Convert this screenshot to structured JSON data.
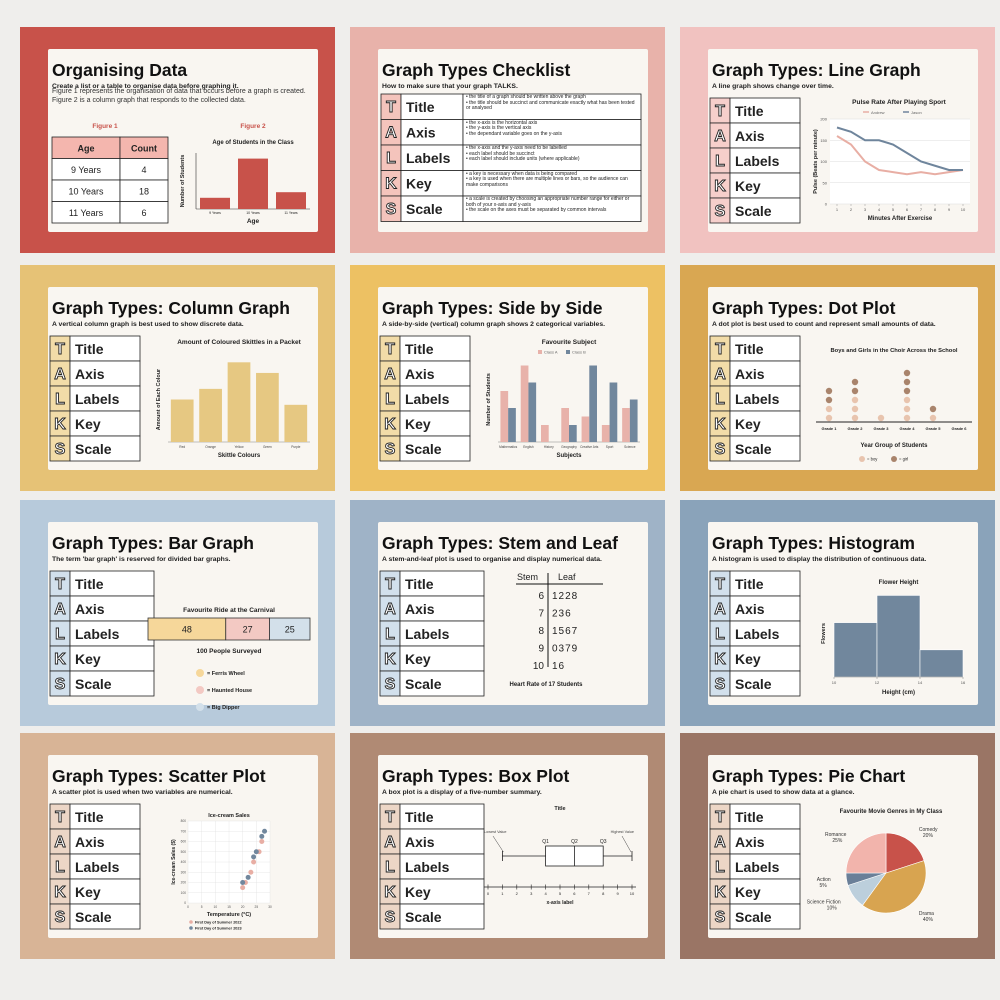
{
  "talks": [
    {
      "letter": "T",
      "word": "Title"
    },
    {
      "letter": "A",
      "word": "Axis"
    },
    {
      "letter": "L",
      "word": "Labels"
    },
    {
      "letter": "K",
      "word": "Key"
    },
    {
      "letter": "S",
      "word": "Scale"
    }
  ],
  "slides": [
    {
      "title": "Organising Data",
      "subtitle": "Create a list or a table to organise data before graphing it.",
      "text": "Figure 1 represents the organisation of data that occurs before a graph is created. Figure 2 is a column graph that responds to the collected data.",
      "background": "#c8524a",
      "tint": "#f4b6ae",
      "table": {
        "caption": "Figure 1",
        "header": [
          "Age",
          "Count"
        ],
        "rows": [
          [
            "9 Years",
            4
          ],
          [
            "10 Years",
            18
          ],
          [
            "11 Years",
            6
          ]
        ]
      },
      "chart": {
        "type": "organising",
        "caption": "Figure 2",
        "title": "Age of Students in the Class",
        "y_label": "Number of Students",
        "x_label": "Age",
        "categories": [
          "9 Years",
          "10 Years",
          "11 Years"
        ],
        "values": [
          4,
          18,
          6
        ],
        "color": "#c8524a",
        "ylim": [
          0,
          20
        ]
      }
    },
    {
      "title": "Graph Types Checklist",
      "subtitle": "How to make sure that your graph TALKS.",
      "background": "#e8b2aa",
      "tint": "#f4c4bc",
      "chart": {
        "type": "checklist",
        "bullets": [
          [
            "the title of a graph should be written above the graph",
            "the title should be succinct and communicate exactly what has been tested or analysed"
          ],
          [
            "the x-axis is the horizontal axis",
            "the y-axis is the vertical axis",
            "the dependant variable goes on the y-axis"
          ],
          [
            "the x-axis and the y-axis need to be labelled",
            "each label should be succinct",
            "each label should include units (where applicable)"
          ],
          [
            "a key is necessary when data is being compared",
            "a key is used when there are multiple lines or bars, so the audience can make comparisons"
          ],
          [
            "a scale is created by choosing an appropriate number range for either or both of your x-axis and y-axis",
            "the scale on the axes must be separated by common intervals"
          ]
        ]
      }
    },
    {
      "title": "Graph Types: Line Graph",
      "subtitle": "A line graph shows change over time.",
      "background": "#f1c2c0",
      "tint": "#f6cfcb",
      "chart": {
        "type": "line",
        "title": "Pulse Rate After Playing Sport",
        "y_label": "Pulse (Beats per minute)",
        "x_label": "Minutes After Exercise",
        "x": [
          1,
          2,
          3,
          4,
          5,
          6,
          7,
          8,
          9,
          10
        ],
        "series": [
          {
            "name": "Andrew",
            "color": "#e8aea4",
            "values": [
              160,
              140,
              100,
              80,
              75,
              70,
              75,
              70,
              75,
              80
            ]
          },
          {
            "name": "Jason",
            "color": "#6f859c",
            "values": [
              180,
              170,
              150,
              150,
              140,
              120,
              100,
              90,
              80,
              80
            ]
          }
        ],
        "xlim": [
          0.5,
          10.5
        ],
        "xticks": [
          1,
          2,
          3,
          4,
          5,
          6,
          7,
          8,
          9,
          10
        ],
        "ylim": [
          0,
          200
        ],
        "yticks": [
          0,
          50,
          100,
          150,
          200
        ],
        "grid": true
      }
    },
    {
      "title": "Graph Types: Column Graph",
      "subtitle": "A vertical column graph is best used to show discrete data.",
      "background": "#e6c276",
      "tint": "#f2dca8",
      "chart": {
        "type": "bar",
        "title": "Amount of Coloured Skittles in a Packet",
        "y_label": "Amount of Each Colour",
        "x_label": "Skittle Colours",
        "categories": [
          "Red",
          "Orange",
          "Yellow",
          "Green",
          "Purple"
        ],
        "values": [
          8,
          10,
          15,
          13,
          7
        ],
        "color": "#e6c882",
        "ylim": [
          0,
          16
        ]
      }
    },
    {
      "title": "Graph Types: Side by Side",
      "subtitle": "A side-by-side (vertical) column graph shows 2 categorical variables.",
      "background": "#edc163",
      "tint": "#f2dca8",
      "chart": {
        "type": "grouped",
        "title": "Favourite Subject",
        "y_label": "Number of Students",
        "x_label": "Subjects",
        "categories": [
          "Mathematics",
          "English",
          "History",
          "Geography",
          "Creative Arts",
          "Sport",
          "Science"
        ],
        "series": [
          {
            "name": "Class A",
            "color": "#e8b2aa",
            "values": [
              6,
              9,
              2,
              4,
              3,
              2,
              4
            ]
          },
          {
            "name": "Class B",
            "color": "#71879d",
            "values": [
              4,
              7,
              0,
              2,
              9,
              7,
              5
            ]
          }
        ],
        "ylim": [
          0,
          10
        ]
      }
    },
    {
      "title": "Graph Types: Dot Plot",
      "subtitle": "A dot plot is best used to count and represent small amounts of data.",
      "background": "#d9a752",
      "tint": "#f2dca8",
      "chart": {
        "type": "dot",
        "title": "Boys and Girls in the Choir Across the School",
        "x_label": "Year Group of Students",
        "categories": [
          "Grade 1",
          "Grade 2",
          "Grade 3",
          "Grade 4",
          "Grade 5",
          "Grade 6"
        ],
        "series": [
          {
            "name": "= boy",
            "color": "#e8c4ae",
            "values": [
              2,
              3,
              1,
              3,
              1,
              0
            ]
          },
          {
            "name": "= girl",
            "color": "#a9846c",
            "values": [
              2,
              2,
              0,
              3,
              1,
              0
            ]
          }
        ]
      }
    },
    {
      "title": "Graph Types: Bar Graph",
      "subtitle": "The term 'bar graph' is reserved for divided bar graphs.",
      "background": "#b7cadb",
      "tint": "#d2e0ec",
      "chart": {
        "type": "divided",
        "title": "Favourite Ride at the Carnival",
        "note": "100 People Surveyed",
        "xlim": [
          0,
          100
        ],
        "series": [
          {
            "name": "= Ferris Wheel",
            "color": "#f6d79a",
            "values": [
              48
            ]
          },
          {
            "name": "= Haunted House",
            "color": "#f3c9c3",
            "values": [
              27
            ]
          },
          {
            "name": "= Big Dipper",
            "color": "#d3e0ea",
            "values": [
              25
            ]
          }
        ]
      }
    },
    {
      "title": "Graph Types: Stem and Leaf",
      "subtitle": "A stem-and-leaf plot is used to organise and display numerical data.",
      "background": "#9fb3c7",
      "tint": "#d2e0ec",
      "chart": {
        "type": "stem",
        "header": [
          "Stem",
          "Leaf"
        ],
        "rows": [
          [
            6,
            "1228"
          ],
          [
            7,
            "236"
          ],
          [
            8,
            "1567"
          ],
          [
            9,
            "0379"
          ],
          [
            10,
            "16"
          ]
        ],
        "caption": "Heart Rate of 17 Students"
      }
    },
    {
      "title": "Graph Types: Histogram",
      "subtitle": "A histogram is used to display the distribution of continuous data.",
      "background": "#8aa3ba",
      "tint": "#d2e0ec",
      "chart": {
        "type": "histogram",
        "title": "Flower Height",
        "y_label": "Flowers",
        "x_label": "Height (cm)",
        "bins": [
          10,
          12,
          14,
          16
        ],
        "values": [
          2,
          3,
          1
        ],
        "color": "#71879d",
        "xlim": [
          10,
          16
        ],
        "xticks": [
          10,
          12,
          14,
          16
        ],
        "ylim": [
          0,
          3.2
        ]
      }
    },
    {
      "title": "Graph Types: Scatter Plot",
      "subtitle": "A scatter plot is used when two variables are numerical.",
      "background": "#d8b496",
      "tint": "#ecd6c6",
      "chart": {
        "type": "scatter",
        "title": "Ice-cream Sales",
        "y_label": "Ice-cream Sales ($)",
        "x_label": "Temperature (°C)",
        "series": [
          {
            "name": "First Day of Summer 2022",
            "color": "#e8aea4",
            "x": [
              20,
              21,
              23,
              24,
              26,
              27
            ],
            "values": [
              150,
              200,
              300,
              400,
              500,
              600
            ]
          },
          {
            "name": "First Day of Summer 2023",
            "color": "#71879d",
            "x": [
              20,
              22,
              24,
              25,
              27,
              28
            ],
            "values": [
              200,
              250,
              450,
              500,
              650,
              700
            ]
          }
        ],
        "xlim": [
          0,
          30
        ],
        "xticks": [
          0,
          5,
          10,
          15,
          20,
          25,
          30
        ],
        "ylim": [
          0,
          800
        ],
        "yticks": [
          0,
          100,
          200,
          300,
          400,
          500,
          600,
          700,
          800
        ],
        "grid": true
      }
    },
    {
      "title": "Graph Types: Box Plot",
      "subtitle": "A box plot is a display of a five-number summary.",
      "background": "#b08a74",
      "tint": "#ecd6c6",
      "chart": {
        "type": "box",
        "title": "Title",
        "low_label": "Lowest Value",
        "high_label": "Highest Value",
        "q_labels": [
          "Q1",
          "Q2",
          "Q3"
        ],
        "x_label": "x-axis label",
        "min": 1,
        "q1": 4,
        "median": 6,
        "q3": 8,
        "max": 10,
        "xlim": [
          0,
          10
        ],
        "xticks": [
          0,
          1,
          2,
          3,
          4,
          5,
          6,
          7,
          8,
          9,
          10
        ]
      }
    },
    {
      "title": "Graph Types: Pie Chart",
      "subtitle": "A pie chart is used to show data at a glance.",
      "background": "#9a7565",
      "tint": "#ecd6c6",
      "chart": {
        "type": "pie",
        "title": "Favourite Movie Genres in My Class",
        "categories": [
          "Comedy",
          "Drama",
          "Science Fiction",
          "Action",
          "Romance"
        ],
        "values": [
          20,
          40,
          10,
          5,
          25
        ],
        "value_labels": [
          "20%",
          "40%",
          "10%",
          "5%",
          "25%"
        ],
        "colors": [
          "#c8524a",
          "#d8a450",
          "#bccfdc",
          "#6a7f98",
          "#f2b4ac"
        ]
      }
    }
  ]
}
